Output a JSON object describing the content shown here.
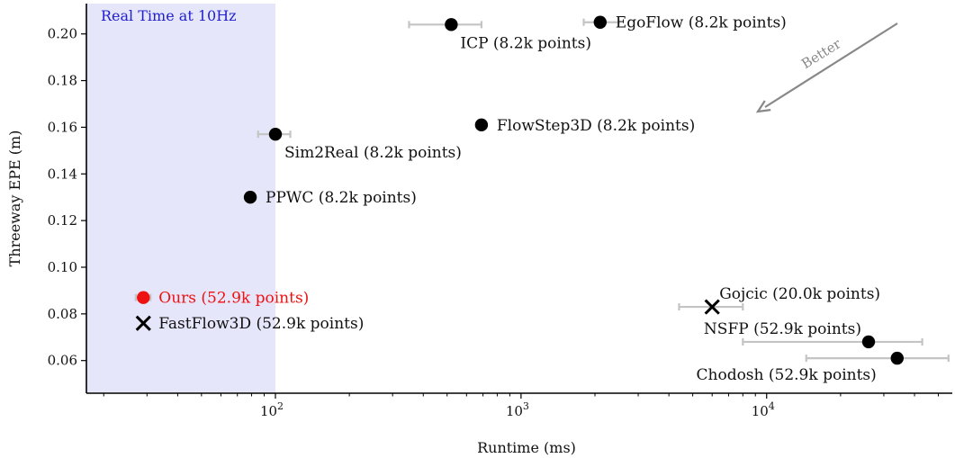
{
  "chart_data": {
    "type": "scatter",
    "title": "",
    "xlabel": "Runtime (ms)",
    "ylabel": "Threeway EPE (m)",
    "x_scale": "log",
    "xlim": [
      17,
      57000
    ],
    "ylim": [
      0.046,
      0.213
    ],
    "x_ticks": [
      {
        "value": 100,
        "base": "10",
        "exp": "2"
      },
      {
        "value": 1000,
        "base": "10",
        "exp": "3"
      },
      {
        "value": 10000,
        "base": "10",
        "exp": "4"
      }
    ],
    "y_ticks": [
      {
        "value": 0.06,
        "label": "0.06"
      },
      {
        "value": 0.08,
        "label": "0.08"
      },
      {
        "value": 0.1,
        "label": "0.10"
      },
      {
        "value": 0.12,
        "label": "0.12"
      },
      {
        "value": 0.14,
        "label": "0.14"
      },
      {
        "value": 0.16,
        "label": "0.16"
      },
      {
        "value": 0.18,
        "label": "0.18"
      },
      {
        "value": 0.2,
        "label": "0.20"
      }
    ],
    "grid": false,
    "region": {
      "label": "Real Time at 10Hz",
      "x_range": [
        17,
        100
      ],
      "color": "#e6e6fb",
      "label_color": "#2020cc"
    },
    "arrow": {
      "label": "Better",
      "direction": "toward lower-left",
      "color": "#888888"
    },
    "points": [
      {
        "name": "ICP (8.2k points)",
        "x": 520,
        "y": 0.204,
        "xerr": [
          350,
          690
        ],
        "marker": "circle",
        "color": "#000000",
        "label_pos": "below"
      },
      {
        "name": "EgoFlow (8.2k points)",
        "x": 2100,
        "y": 0.205,
        "xerr": [
          1800,
          2500
        ],
        "marker": "circle",
        "color": "#000000",
        "label_pos": "right"
      },
      {
        "name": "FlowStep3D (8.2k points)",
        "x": 690,
        "y": 0.161,
        "xerr": null,
        "marker": "circle",
        "color": "#000000",
        "label_pos": "right"
      },
      {
        "name": "Sim2Real (8.2k points)",
        "x": 100,
        "y": 0.157,
        "xerr": [
          85,
          115
        ],
        "marker": "circle",
        "color": "#000000",
        "label_pos": "below"
      },
      {
        "name": "PPWC (8.2k points)",
        "x": 79,
        "y": 0.13,
        "xerr": null,
        "marker": "circle",
        "color": "#000000",
        "label_pos": "right"
      },
      {
        "name": "Ours (52.9k points)",
        "x": 29,
        "y": 0.087,
        "xerr": [
          27,
          31
        ],
        "marker": "circle",
        "color": "#ee1111",
        "label_pos": "right"
      },
      {
        "name": "FastFlow3D (52.9k points)",
        "x": 29,
        "y": 0.076,
        "xerr": null,
        "marker": "x",
        "color": "#000000",
        "label_pos": "right"
      },
      {
        "name": "Gojcic (20.0k points)",
        "x": 6000,
        "y": 0.083,
        "xerr": [
          4400,
          8000
        ],
        "marker": "x",
        "color": "#000000",
        "label_pos": "upper-right"
      },
      {
        "name": "NSFP (52.9k points)",
        "x": 26000,
        "y": 0.068,
        "xerr": [
          8000,
          43000
        ],
        "marker": "circle",
        "color": "#000000",
        "label_pos": "upper-left"
      },
      {
        "name": "Chodosh (52.9k points)",
        "x": 34000,
        "y": 0.061,
        "xerr": [
          14500,
          55000
        ],
        "marker": "circle",
        "color": "#000000",
        "label_pos": "lower-left"
      }
    ]
  }
}
